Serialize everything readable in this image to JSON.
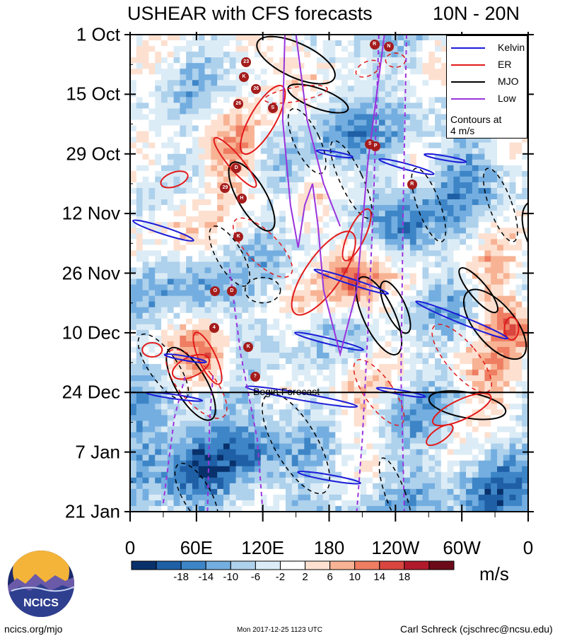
{
  "header": {
    "title": "USHEAR with CFS forecasts",
    "region": "10N - 20N"
  },
  "chart_data": {
    "type": "heatmap",
    "title": "USHEAR with CFS forecasts",
    "subtitle": "10N - 20N",
    "x_tick_labels": [
      "0",
      "60E",
      "120E",
      "180",
      "120W",
      "60W",
      "0"
    ],
    "x_ticks_deg": [
      0,
      60,
      120,
      180,
      240,
      300,
      360
    ],
    "xlim_deg": [
      0,
      360
    ],
    "y_tick_labels": [
      "1 Oct",
      "15 Oct",
      "29 Oct",
      "12 Nov",
      "26 Nov",
      "10 Dec",
      "24 Dec",
      "7 Jan",
      "21 Jan"
    ],
    "y_ticks_day": [
      0,
      14,
      28,
      42,
      56,
      70,
      84,
      98,
      112
    ],
    "ylim_day": [
      0,
      112
    ],
    "forecast_start_day": 84,
    "forecast_label": "Begin Forecast",
    "colorbar": {
      "units": "m/s",
      "tick_labels": [
        "-18",
        "-14",
        "-10",
        "-6",
        "-2",
        "2",
        "6",
        "10",
        "14",
        "18"
      ],
      "colors": [
        "#08306b",
        "#1f5fa5",
        "#3d85c6",
        "#74aee0",
        "#aed1ec",
        "#dcecf6",
        "#ffffff",
        "#fde0d0",
        "#f7b394",
        "#ee7d62",
        "#d9453f",
        "#b11a2b",
        "#6d0a19"
      ]
    },
    "legend": [
      {
        "label": "Kelvin",
        "color": "#1b1bd8"
      },
      {
        "label": "ER",
        "color": "#e21a1a"
      },
      {
        "label": "MJO",
        "color": "#000000"
      },
      {
        "label": "Low",
        "color": "#9933dd"
      }
    ],
    "legend_note": [
      "Contours at",
      "4 m/s"
    ],
    "storms": [
      {
        "label": "23",
        "lon": 105,
        "day": 6.5
      },
      {
        "label": "K",
        "lon": 103,
        "day": 10
      },
      {
        "label": "26",
        "lon": 114,
        "day": 12.8
      },
      {
        "label": "26",
        "lon": 98,
        "day": 16.3
      },
      {
        "label": "S",
        "lon": 129,
        "day": 17.2
      },
      {
        "label": "R",
        "lon": 221,
        "day": 2.3
      },
      {
        "label": "N",
        "lon": 234,
        "day": 2.8
      },
      {
        "label": "S",
        "lon": 217,
        "day": 25.7
      },
      {
        "label": "P",
        "lon": 222,
        "day": 26.2
      },
      {
        "label": "D",
        "lon": 96,
        "day": 31.3
      },
      {
        "label": "29",
        "lon": 86,
        "day": 36
      },
      {
        "label": "H",
        "lon": 101,
        "day": 38.5
      },
      {
        "label": "R",
        "lon": 255,
        "day": 35.2
      },
      {
        "label": "K",
        "lon": 98,
        "day": 47.5
      },
      {
        "label": "O",
        "lon": 77,
        "day": 60.3
      },
      {
        "label": "D",
        "lon": 92,
        "day": 60.3
      },
      {
        "label": "4",
        "lon": 76,
        "day": 68.8
      },
      {
        "label": "K",
        "lon": 107,
        "day": 73.3
      },
      {
        "label": "?",
        "lon": 113,
        "day": 80.3
      }
    ]
  },
  "footer": {
    "site": "ncics.org/mjo",
    "timestamp": "Mon 2017-12-25 1123 UTC",
    "author": "Carl Schreck (cjschrec@ncsu.edu)"
  },
  "logo": {
    "text": "NCICS"
  }
}
